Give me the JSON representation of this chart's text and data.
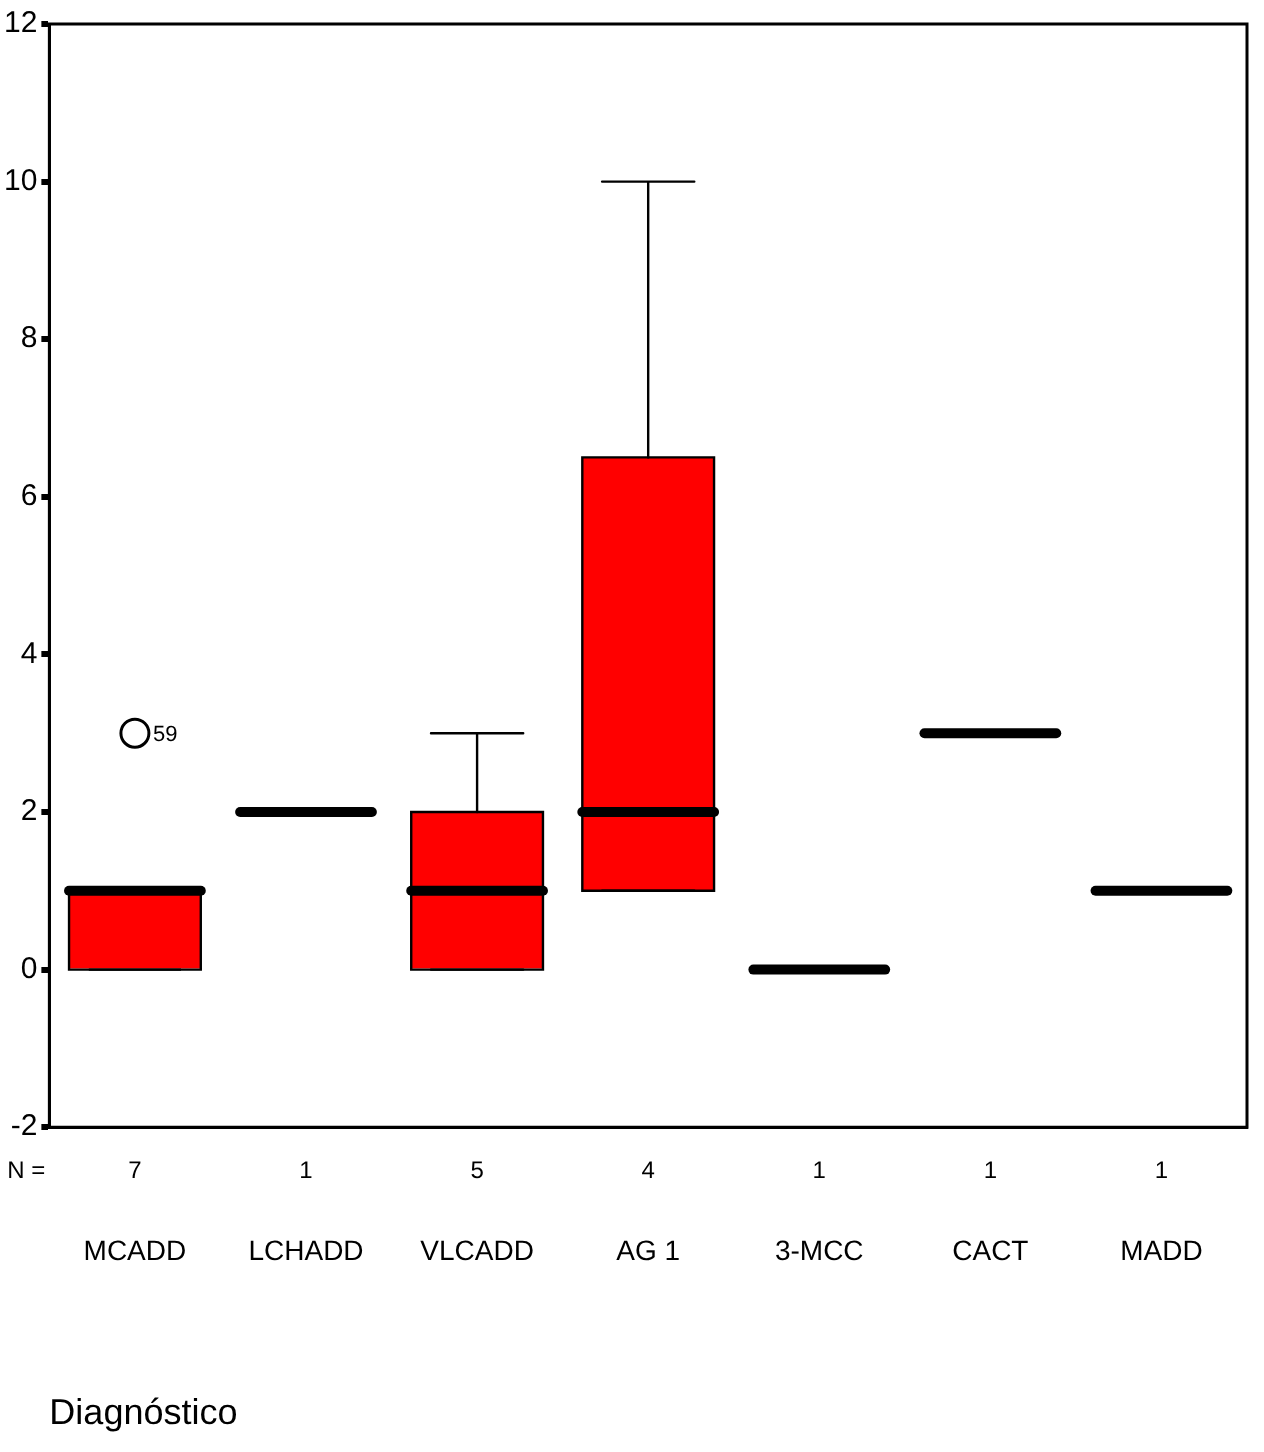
{
  "chart_data": {
    "type": "box",
    "xlabel": "Diagnóstico",
    "categories": [
      "MCADD",
      "LCHADD",
      "VLCADD",
      "AG 1",
      "3-MCC",
      "CACT",
      "MADD"
    ],
    "colors": [
      "#ff0000",
      "#000000",
      "#ff0000",
      "#ff0000",
      "#000000",
      "#000000",
      "#000000"
    ],
    "boxes": [
      {
        "low": 0,
        "q1": 0,
        "median": 1,
        "q3": 1,
        "high": 1,
        "outliers": [
          3
        ]
      },
      {
        "low": 2,
        "q1": 2,
        "median": 2,
        "q3": 2,
        "high": 2
      },
      {
        "low": 0,
        "q1": 0,
        "median": 1,
        "q3": 2,
        "high": 3
      },
      {
        "low": 1,
        "q1": 1,
        "median": 2,
        "q3": 6.5,
        "high": 10
      },
      {
        "low": 0,
        "q1": 0,
        "median": 0,
        "q3": 0,
        "high": 0
      },
      {
        "low": 3,
        "q1": 3,
        "median": 3,
        "q3": 3,
        "high": 3
      },
      {
        "low": 1,
        "q1": 1,
        "median": 1,
        "q3": 1,
        "high": 1
      }
    ],
    "ylim": [
      -2,
      12
    ],
    "yticks": [
      -2,
      0,
      2,
      4,
      6,
      8,
      10,
      12
    ],
    "grid": false,
    "legend": false,
    "annotations": [
      "N =",
      "7",
      "1",
      "5",
      "4",
      "1",
      "1",
      "1",
      "59"
    ]
  }
}
